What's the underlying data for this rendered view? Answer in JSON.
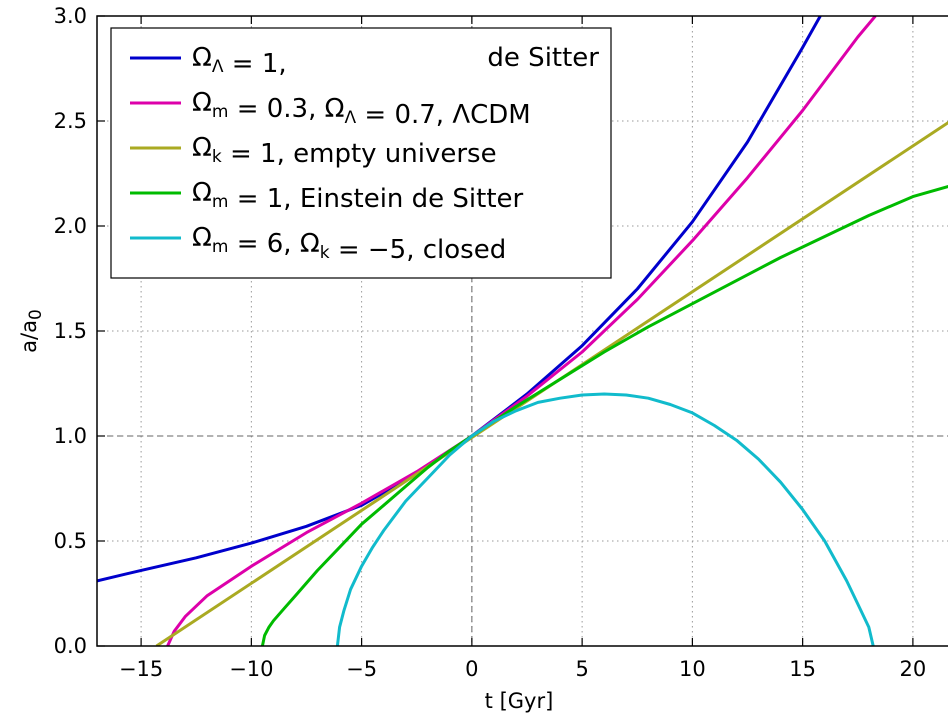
{
  "chart_data": {
    "type": "line",
    "xlabel": "t [Gyr]",
    "ylabel": "a/a₀",
    "xlim": [
      -17,
      22
    ],
    "ylim": [
      0.0,
      3.0
    ],
    "xticks": [
      -15,
      -10,
      -5,
      0,
      5,
      10,
      15,
      20
    ],
    "xtick_labels": [
      "−15",
      "−10",
      "−5",
      "0",
      "5",
      "10",
      "15",
      "20"
    ],
    "yticks": [
      0.0,
      0.5,
      1.0,
      1.5,
      2.0,
      2.5,
      3.0
    ],
    "ytick_labels": [
      "0.0",
      "0.5",
      "1.0",
      "1.5",
      "2.0",
      "2.5",
      "3.0"
    ],
    "grid": true,
    "legend_position": "top-left",
    "reference_lines": {
      "x": 0,
      "y": 1.0
    },
    "series": [
      {
        "name": "ΩΛ = 1,   de Sitter",
        "legend": {
          "parts": [
            {
              "t": "Ω"
            },
            {
              "t": "Λ",
              "sub": true
            },
            {
              "t": " = 1,"
            }
          ],
          "suffix": "de Sitter"
        },
        "color": "#0000cc",
        "x": [
          -17,
          -15,
          -12.5,
          -10,
          -7.5,
          -5,
          -2.5,
          0,
          2.5,
          5,
          7.5,
          10,
          12.5,
          15,
          15.8
        ],
        "y": [
          0.31,
          0.36,
          0.42,
          0.49,
          0.57,
          0.67,
          0.82,
          1.0,
          1.2,
          1.43,
          1.7,
          2.02,
          2.4,
          2.85,
          3.0
        ]
      },
      {
        "name": "Ωm = 0.3, ΩΛ = 0.7, ΛCDM",
        "legend": {
          "parts": [
            {
              "t": "Ω"
            },
            {
              "t": "m",
              "sub": true
            },
            {
              "t": " = 0.3, Ω"
            },
            {
              "t": "Λ",
              "sub": true
            },
            {
              "t": " = 0.7, ΛCDM"
            }
          ],
          "suffix": ""
        },
        "color": "#dd00aa",
        "x": [
          -13.8,
          -13.5,
          -13,
          -12,
          -10,
          -7.5,
          -5,
          -2.5,
          0,
          2.5,
          5,
          7.5,
          10,
          12.5,
          15,
          17.5,
          18.3
        ],
        "y": [
          0.0,
          0.07,
          0.14,
          0.24,
          0.38,
          0.54,
          0.68,
          0.83,
          1.0,
          1.19,
          1.4,
          1.65,
          1.93,
          2.23,
          2.55,
          2.9,
          3.0
        ]
      },
      {
        "name": "Ωk = 1,   empty universe",
        "legend": {
          "parts": [
            {
              "t": "Ω"
            },
            {
              "t": "k",
              "sub": true
            },
            {
              "t": " = 1,   empty universe"
            }
          ],
          "suffix": ""
        },
        "color": "#aaaa22",
        "x": [
          -14.3,
          22
        ],
        "y": [
          0.0,
          2.52
        ]
      },
      {
        "name": "Ωm = 1, Einstein de Sitter",
        "legend": {
          "parts": [
            {
              "t": "Ω"
            },
            {
              "t": "m",
              "sub": true
            },
            {
              "t": " = 1, Einstein de Sitter"
            }
          ],
          "suffix": ""
        },
        "color": "#00bb00",
        "x": [
          -9.5,
          -9.4,
          -9.2,
          -9,
          -8.5,
          -8,
          -7,
          -6,
          -5,
          -4,
          -3,
          -2,
          -1,
          0,
          2,
          4,
          6,
          8,
          10,
          12,
          14,
          16,
          18,
          20,
          22
        ],
        "y": [
          0.0,
          0.05,
          0.09,
          0.12,
          0.18,
          0.24,
          0.36,
          0.47,
          0.58,
          0.67,
          0.76,
          0.85,
          0.93,
          1.0,
          1.14,
          1.27,
          1.4,
          1.52,
          1.63,
          1.74,
          1.85,
          1.95,
          2.05,
          2.14,
          2.2
        ]
      },
      {
        "name": "Ωm = 6, Ωk = −5,   closed",
        "legend": {
          "parts": [
            {
              "t": "Ω"
            },
            {
              "t": "m",
              "sub": true
            },
            {
              "t": " = 6, Ω"
            },
            {
              "t": "k",
              "sub": true
            },
            {
              "t": " = −5,   closed"
            }
          ],
          "suffix": ""
        },
        "color": "#11bbcc",
        "x": [
          -6.1,
          -6.0,
          -5.8,
          -5.5,
          -5,
          -4.5,
          -4,
          -3,
          -2,
          -1,
          0,
          1,
          2,
          3,
          4,
          5,
          6,
          7,
          8,
          9,
          10,
          11,
          12,
          13,
          14,
          15,
          16,
          17,
          17.5,
          18,
          18.2
        ],
        "y": [
          0.0,
          0.09,
          0.17,
          0.27,
          0.38,
          0.47,
          0.55,
          0.69,
          0.8,
          0.91,
          1.0,
          1.07,
          1.12,
          1.16,
          1.18,
          1.195,
          1.2,
          1.195,
          1.18,
          1.15,
          1.11,
          1.05,
          0.98,
          0.89,
          0.78,
          0.65,
          0.5,
          0.31,
          0.2,
          0.09,
          0.0
        ]
      }
    ]
  }
}
